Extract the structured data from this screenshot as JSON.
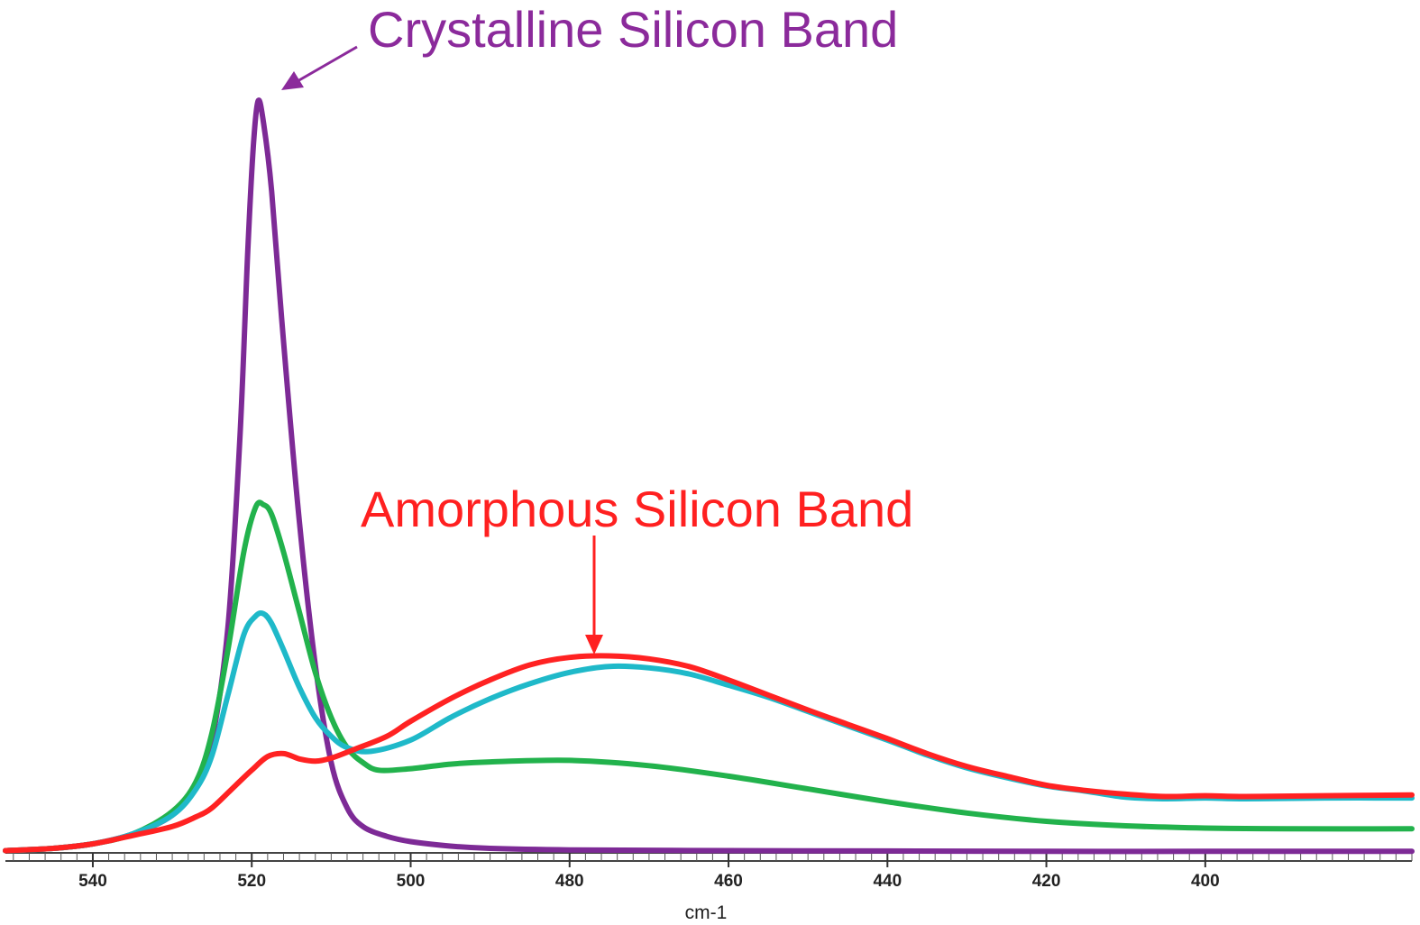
{
  "chart_data": {
    "type": "line",
    "title": "",
    "xlabel": "cm-1",
    "ylabel": "",
    "xlim": [
      551,
      374
    ],
    "ylim": [
      0,
      100
    ],
    "x_reversed": true,
    "grid": false,
    "legend": "none",
    "x_ticks": [
      540,
      520,
      500,
      480,
      460,
      440,
      420,
      400
    ],
    "annotations": [
      {
        "text": "Crystalline Silicon Band",
        "color": "#8b2a9b",
        "points_to": {
          "x": 519,
          "y": 100
        }
      },
      {
        "text": "Amorphous Silicon Band",
        "color": "#ff2020",
        "points_to": {
          "x": 480,
          "y": 27
        }
      }
    ],
    "series": [
      {
        "color": "#7d2a96",
        "points": [
          [
            551,
            0.3
          ],
          [
            545,
            0.6
          ],
          [
            540,
            1.2
          ],
          [
            535,
            2.5
          ],
          [
            530,
            5
          ],
          [
            527,
            9
          ],
          [
            525,
            15
          ],
          [
            523,
            30
          ],
          [
            521.5,
            55
          ],
          [
            520.5,
            80
          ],
          [
            519.8,
            94
          ],
          [
            519.2,
            100
          ],
          [
            518.5,
            97
          ],
          [
            517.5,
            88
          ],
          [
            516,
            68
          ],
          [
            514,
            44
          ],
          [
            512,
            25
          ],
          [
            510,
            12
          ],
          [
            508,
            6
          ],
          [
            506,
            3.5
          ],
          [
            503,
            2.2
          ],
          [
            500,
            1.5
          ],
          [
            495,
            0.9
          ],
          [
            490,
            0.6
          ],
          [
            480,
            0.4
          ],
          [
            460,
            0.3
          ],
          [
            440,
            0.25
          ],
          [
            420,
            0.2
          ],
          [
            400,
            0.2
          ],
          [
            374,
            0.2
          ]
        ]
      },
      {
        "color": "#22b24c",
        "points": [
          [
            551,
            0.3
          ],
          [
            545,
            0.6
          ],
          [
            540,
            1.2
          ],
          [
            535,
            2.5
          ],
          [
            530,
            5.5
          ],
          [
            527,
            9.5
          ],
          [
            525,
            16
          ],
          [
            523,
            27
          ],
          [
            521,
            40
          ],
          [
            519.5,
            46
          ],
          [
            518.5,
            46.3
          ],
          [
            517.5,
            45
          ],
          [
            516,
            40
          ],
          [
            514,
            32
          ],
          [
            512,
            24
          ],
          [
            510,
            18
          ],
          [
            508,
            14
          ],
          [
            506,
            12
          ],
          [
            504,
            11
          ],
          [
            500,
            11.2
          ],
          [
            495,
            11.8
          ],
          [
            490,
            12.1
          ],
          [
            480,
            12.3
          ],
          [
            470,
            11.6
          ],
          [
            460,
            10.2
          ],
          [
            450,
            8.5
          ],
          [
            440,
            6.8
          ],
          [
            430,
            5.3
          ],
          [
            420,
            4.2
          ],
          [
            410,
            3.6
          ],
          [
            400,
            3.3
          ],
          [
            390,
            3.2
          ],
          [
            374,
            3.2
          ]
        ]
      },
      {
        "color": "#1fb9c9",
        "points": [
          [
            551,
            0.3
          ],
          [
            545,
            0.6
          ],
          [
            540,
            1.2
          ],
          [
            535,
            2.5
          ],
          [
            530,
            5
          ],
          [
            527,
            8.5
          ],
          [
            525,
            13
          ],
          [
            523,
            21
          ],
          [
            521,
            29
          ],
          [
            519.5,
            31.5
          ],
          [
            518.5,
            31.8
          ],
          [
            517.5,
            30.5
          ],
          [
            516,
            27
          ],
          [
            514,
            22
          ],
          [
            512,
            18
          ],
          [
            510,
            15.5
          ],
          [
            508,
            14
          ],
          [
            505,
            13.5
          ],
          [
            500,
            15
          ],
          [
            495,
            18
          ],
          [
            490,
            20.5
          ],
          [
            485,
            22.5
          ],
          [
            480,
            24
          ],
          [
            475,
            24.8
          ],
          [
            470,
            24.6
          ],
          [
            465,
            23.8
          ],
          [
            460,
            22.3
          ],
          [
            455,
            20.7
          ],
          [
            450,
            18.8
          ],
          [
            445,
            16.9
          ],
          [
            440,
            15
          ],
          [
            435,
            13
          ],
          [
            430,
            11.3
          ],
          [
            425,
            10
          ],
          [
            420,
            8.9
          ],
          [
            415,
            8.2
          ],
          [
            410,
            7.4
          ],
          [
            405,
            7.2
          ],
          [
            400,
            7.3
          ],
          [
            395,
            7.2
          ],
          [
            385,
            7.3
          ],
          [
            374,
            7.3
          ]
        ]
      },
      {
        "color": "#ff2222",
        "points": [
          [
            551,
            0.3
          ],
          [
            545,
            0.6
          ],
          [
            540,
            1.2
          ],
          [
            535,
            2.3
          ],
          [
            530,
            3.5
          ],
          [
            527,
            4.8
          ],
          [
            525,
            6
          ],
          [
            522,
            9
          ],
          [
            520,
            11
          ],
          [
            518,
            12.8
          ],
          [
            516,
            13.2
          ],
          [
            514,
            12.5
          ],
          [
            512,
            12.2
          ],
          [
            510,
            12.6
          ],
          [
            507,
            13.8
          ],
          [
            503,
            15.5
          ],
          [
            500,
            17.5
          ],
          [
            495,
            20.5
          ],
          [
            490,
            23
          ],
          [
            485,
            25
          ],
          [
            480,
            26
          ],
          [
            475,
            26.2
          ],
          [
            470,
            25.8
          ],
          [
            465,
            24.8
          ],
          [
            460,
            23
          ],
          [
            455,
            21
          ],
          [
            450,
            19
          ],
          [
            445,
            17.1
          ],
          [
            440,
            15.2
          ],
          [
            435,
            13.2
          ],
          [
            430,
            11.5
          ],
          [
            425,
            10.2
          ],
          [
            420,
            9
          ],
          [
            415,
            8.3
          ],
          [
            410,
            7.8
          ],
          [
            405,
            7.5
          ],
          [
            400,
            7.6
          ],
          [
            395,
            7.5
          ],
          [
            385,
            7.6
          ],
          [
            374,
            7.7
          ]
        ]
      }
    ]
  }
}
